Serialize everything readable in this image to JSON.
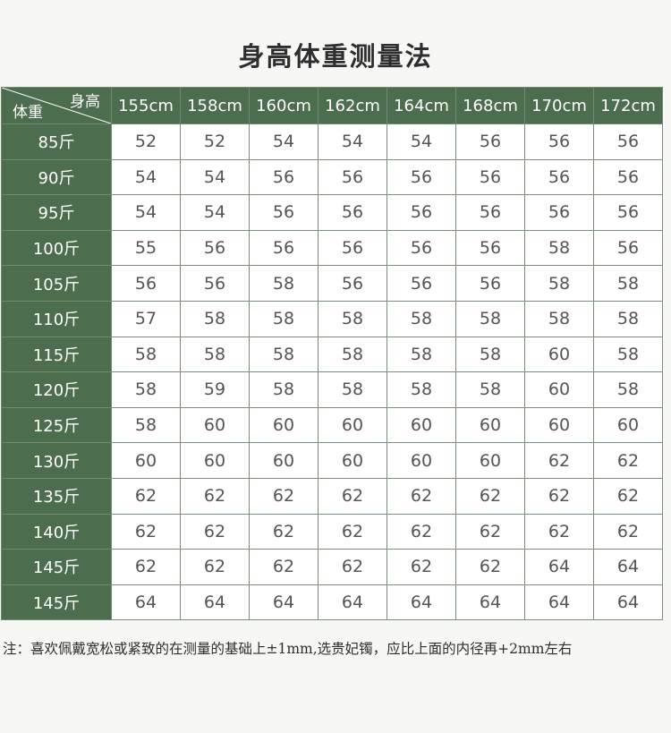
{
  "title": "身高体重测量法",
  "table": {
    "corner_height_label": "身高",
    "corner_weight_label": "体重",
    "height_columns": [
      "155cm",
      "158cm",
      "160cm",
      "162cm",
      "164cm",
      "168cm",
      "170cm",
      "172cm"
    ],
    "rows": [
      {
        "weight": "85斤",
        "sizes": [
          "52",
          "52",
          "54",
          "54",
          "54",
          "56",
          "56",
          "56"
        ]
      },
      {
        "weight": "90斤",
        "sizes": [
          "54",
          "54",
          "56",
          "56",
          "56",
          "56",
          "56",
          "56"
        ]
      },
      {
        "weight": "95斤",
        "sizes": [
          "54",
          "54",
          "56",
          "56",
          "56",
          "56",
          "56",
          "56"
        ]
      },
      {
        "weight": "100斤",
        "sizes": [
          "55",
          "56",
          "56",
          "56",
          "56",
          "56",
          "58",
          "56"
        ]
      },
      {
        "weight": "105斤",
        "sizes": [
          "56",
          "56",
          "58",
          "56",
          "56",
          "56",
          "58",
          "58"
        ]
      },
      {
        "weight": "110斤",
        "sizes": [
          "57",
          "58",
          "58",
          "58",
          "58",
          "58",
          "58",
          "58"
        ]
      },
      {
        "weight": "115斤",
        "sizes": [
          "58",
          "58",
          "58",
          "58",
          "58",
          "58",
          "60",
          "58"
        ]
      },
      {
        "weight": "120斤",
        "sizes": [
          "58",
          "59",
          "58",
          "58",
          "58",
          "58",
          "60",
          "58"
        ]
      },
      {
        "weight": "125斤",
        "sizes": [
          "58",
          "60",
          "60",
          "60",
          "60",
          "60",
          "60",
          "60"
        ]
      },
      {
        "weight": "130斤",
        "sizes": [
          "60",
          "60",
          "60",
          "60",
          "60",
          "60",
          "62",
          "62"
        ]
      },
      {
        "weight": "135斤",
        "sizes": [
          "62",
          "62",
          "62",
          "62",
          "62",
          "62",
          "62",
          "62"
        ]
      },
      {
        "weight": "140斤",
        "sizes": [
          "62",
          "62",
          "62",
          "62",
          "62",
          "62",
          "62",
          "62"
        ]
      },
      {
        "weight": "145斤",
        "sizes": [
          "62",
          "62",
          "62",
          "62",
          "62",
          "62",
          "64",
          "64"
        ]
      },
      {
        "weight": "145斤",
        "sizes": [
          "64",
          "64",
          "64",
          "64",
          "64",
          "64",
          "64",
          "64"
        ]
      }
    ]
  },
  "note": "注：喜欢佩戴宽松或紧致的在测量的基础上±1mm,选贵妃镯，应比上面的内径再+2mm左右",
  "colors": {
    "header_green": "#4d6d4f",
    "background": "#f7f7f5"
  }
}
